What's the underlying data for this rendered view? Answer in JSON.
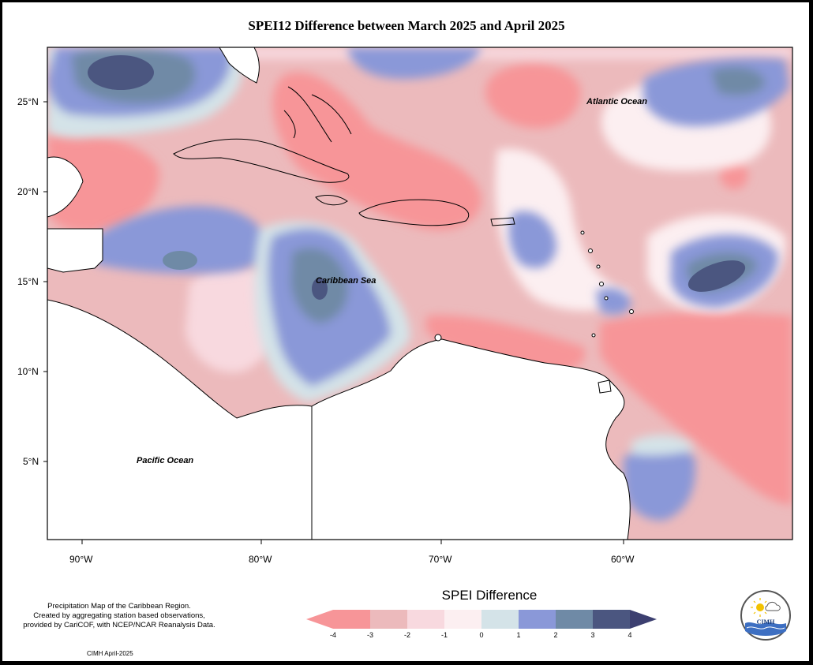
{
  "title": "SPEI12 Difference between March 2025 and April 2025",
  "map": {
    "latitude_labels": [
      "25°N",
      "20°N",
      "15°N",
      "10°N",
      "5°N"
    ],
    "longitude_labels": [
      "90°W",
      "80°W",
      "70°W",
      "60°W"
    ],
    "ocean_labels": {
      "atlantic": "Atlantic Ocean",
      "caribbean": "Caribbean Sea",
      "pacific": "Pacific Ocean"
    }
  },
  "legend": {
    "title": "SPEI Difference",
    "ticks": [
      "-4",
      "-3",
      "-2",
      "-1",
      "0",
      "1",
      "2",
      "3",
      "4"
    ],
    "colors": [
      "#f79598",
      "#ecbabc",
      "#f8d9df",
      "#fceff1",
      "#d4e3e8",
      "#8a98d8",
      "#6f8aa6",
      "#4b5680"
    ],
    "left_arrow_color": "#f79598",
    "right_arrow_color": "#3c3f70"
  },
  "footnote": {
    "line1": "Precipitation Map of the Caribbean Region.",
    "line2": "Created by aggregating station based observations,",
    "line3": "provided by CariCOF, with NCEP/NCAR Reanalysis Data."
  },
  "credit": "CIMH April-2025",
  "logo": {
    "text": "CIMH",
    "icon": "cimh-logo-icon"
  }
}
